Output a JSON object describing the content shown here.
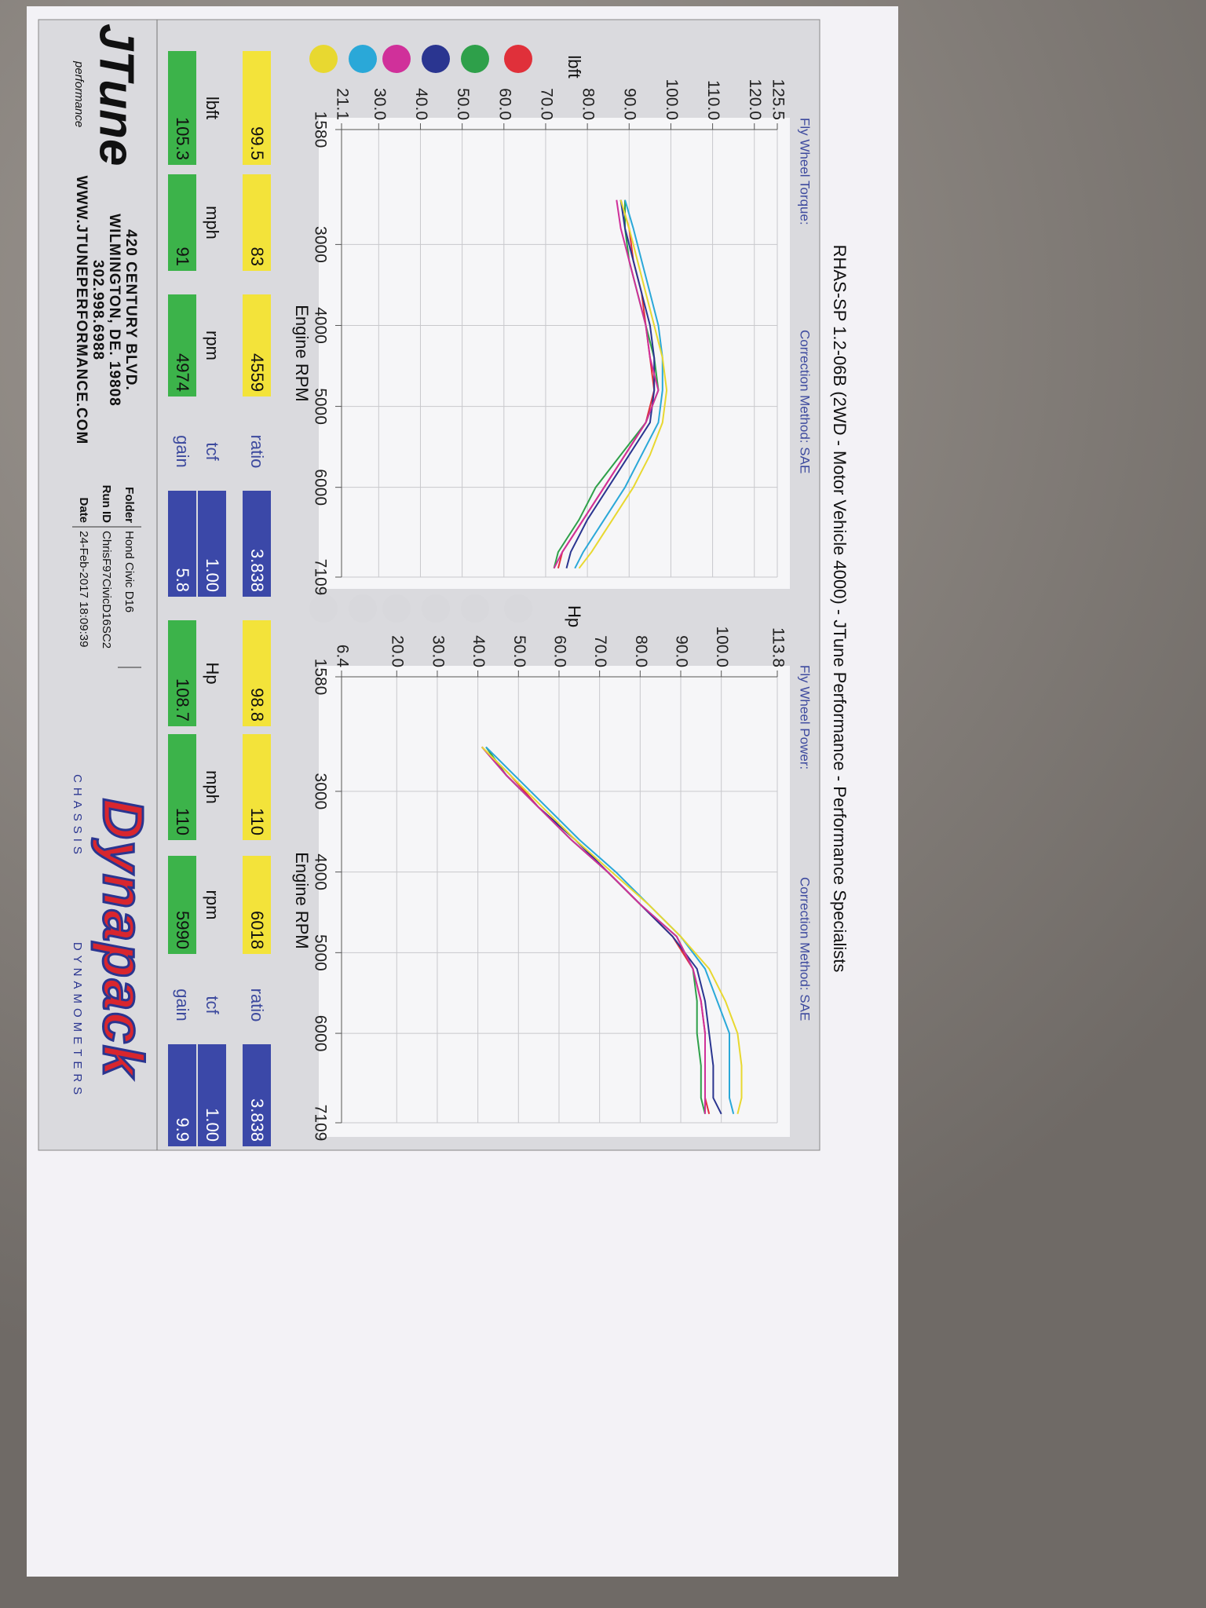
{
  "header": {
    "title": "RHAS-SP 1.2-06B  (2WD - Motor Vehicle 4000) - JTune Performance - Performance Specialists"
  },
  "chart_data": [
    {
      "type": "line",
      "subtitle": "Fly Wheel Torque:",
      "correction": "Correction Method: SAE",
      "y_label": "lbft",
      "x_label": "Engine RPM",
      "xlim": [
        1580,
        7109
      ],
      "xticks": [
        1580,
        3000,
        4000,
        5000,
        6000,
        7109
      ],
      "ylim": [
        21.1,
        125.5
      ],
      "yticks": [
        21.1,
        {
          "value": 30,
          "label": "30.0"
        },
        {
          "value": 40,
          "label": "40.0"
        },
        {
          "value": 50,
          "label": "50.0"
        },
        {
          "value": 60,
          "label": "60.0"
        },
        {
          "value": 70,
          "label": "70.0"
        },
        {
          "value": 80,
          "label": "80.0"
        },
        {
          "value": 90,
          "label": "90.0"
        },
        {
          "value": 100,
          "label": "100.0"
        },
        {
          "value": 110,
          "label": "110.0"
        },
        {
          "value": 120,
          "label": "120.0"
        },
        125.5
      ],
      "grid": true,
      "legend_active": true,
      "x": [
        2450,
        2800,
        3200,
        3600,
        4000,
        4400,
        4800,
        5200,
        5600,
        6000,
        6400,
        6800,
        7000
      ],
      "series": [
        {
          "color": "#e0303a",
          "values": [
            88,
            90,
            91,
            93,
            94,
            95,
            96,
            94,
            89,
            84,
            79,
            74,
            73
          ]
        },
        {
          "color": "#2ea04a",
          "values": [
            89,
            89,
            90,
            92,
            94,
            96,
            97,
            94,
            88,
            82,
            78,
            73,
            72
          ]
        },
        {
          "color": "#2a3590",
          "values": [
            88,
            89,
            91,
            93,
            95,
            96,
            96,
            95,
            90,
            85,
            80,
            76,
            75
          ]
        },
        {
          "color": "#d0309a",
          "values": [
            87,
            88,
            90,
            92,
            94,
            95,
            97,
            94,
            89,
            84,
            79,
            74,
            72
          ]
        },
        {
          "color": "#2aa8d8",
          "values": [
            89,
            91,
            93,
            95,
            97,
            98,
            98,
            97,
            93,
            89,
            84,
            79,
            77
          ]
        },
        {
          "color": "#e8d830",
          "values": [
            88,
            90,
            92,
            94,
            96,
            98,
            99,
            98,
            95,
            91,
            86,
            81,
            78
          ]
        }
      ]
    },
    {
      "type": "line",
      "subtitle": "Fly Wheel Power:",
      "correction": "Correction Method: SAE",
      "y_label": "Hp",
      "x_label": "Engine RPM",
      "xlim": [
        1580,
        7109
      ],
      "xticks": [
        1580,
        3000,
        4000,
        5000,
        6000,
        7109
      ],
      "ylim": [
        6.4,
        113.8
      ],
      "yticks": [
        6.4,
        {
          "value": 20,
          "label": "20.0"
        },
        {
          "value": 30,
          "label": "30.0"
        },
        {
          "value": 40,
          "label": "40.0"
        },
        {
          "value": 50,
          "label": "50.0"
        },
        {
          "value": 60,
          "label": "60.0"
        },
        {
          "value": 70,
          "label": "70.0"
        },
        {
          "value": 80,
          "label": "80.0"
        },
        {
          "value": 90,
          "label": "90.0"
        },
        {
          "value": 100,
          "label": "100.0"
        },
        113.8
      ],
      "grid": true,
      "legend_active": false,
      "x": [
        2450,
        2800,
        3200,
        3600,
        4000,
        4400,
        4800,
        5200,
        5600,
        6000,
        6400,
        6800,
        7000
      ],
      "series": [
        {
          "color": "#e0303a",
          "values": [
            41,
            48,
            55,
            64,
            72,
            80,
            88,
            93,
            95,
            96,
            96,
            96,
            97
          ]
        },
        {
          "color": "#2ea04a",
          "values": [
            42,
            47,
            55,
            63,
            72,
            80,
            89,
            93,
            94,
            94,
            95,
            95,
            96
          ]
        },
        {
          "color": "#2a3590",
          "values": [
            41,
            47,
            55,
            64,
            72,
            80,
            88,
            94,
            96,
            97,
            98,
            98,
            100
          ]
        },
        {
          "color": "#d0309a",
          "values": [
            41,
            47,
            55,
            63,
            72,
            80,
            89,
            93,
            95,
            96,
            96,
            96,
            96
          ]
        },
        {
          "color": "#2aa8d8",
          "values": [
            42,
            49,
            57,
            65,
            74,
            82,
            90,
            96,
            99,
            102,
            102,
            102,
            103
          ]
        },
        {
          "color": "#e8d830",
          "values": [
            41,
            48,
            56,
            64,
            73,
            82,
            90,
            97,
            101,
            104,
            105,
            105,
            104
          ]
        }
      ]
    }
  ],
  "readouts": [
    [
      [
        "99.5",
        "83",
        "4559",
        "ratio",
        "3.838"
      ],
      [
        "lbft",
        "mph",
        "rpm",
        "tcf",
        "1.00"
      ],
      [
        "105.3",
        "91",
        "4974",
        "gain",
        "5.8"
      ]
    ],
    [
      [
        "98.8",
        "110",
        "6018",
        "ratio",
        "3.838"
      ],
      [
        "Hp",
        "mph",
        "rpm",
        "tcf",
        "1.00"
      ],
      [
        "108.7",
        "110",
        "5990",
        "gain",
        "9.9"
      ]
    ]
  ],
  "shop": {
    "logo": "JTune",
    "logo_sub": "performance",
    "address": [
      "420 CENTURY BLVD.",
      "WILMINGTON, DE. 19808",
      "302.998.6988",
      "WWW.JTUNEPERFORMANCE.COM"
    ]
  },
  "run_info": [
    [
      "Folder",
      "Hond Civic D16"
    ],
    [
      "Run ID",
      "ChrisF97CivicD16SC2"
    ],
    [
      "Date",
      "24-Feb-2017  18:09:39"
    ]
  ],
  "brand": {
    "name": "Dynapack",
    "tagline": [
      "CHASSIS",
      "DYNAMOMETERS"
    ]
  }
}
